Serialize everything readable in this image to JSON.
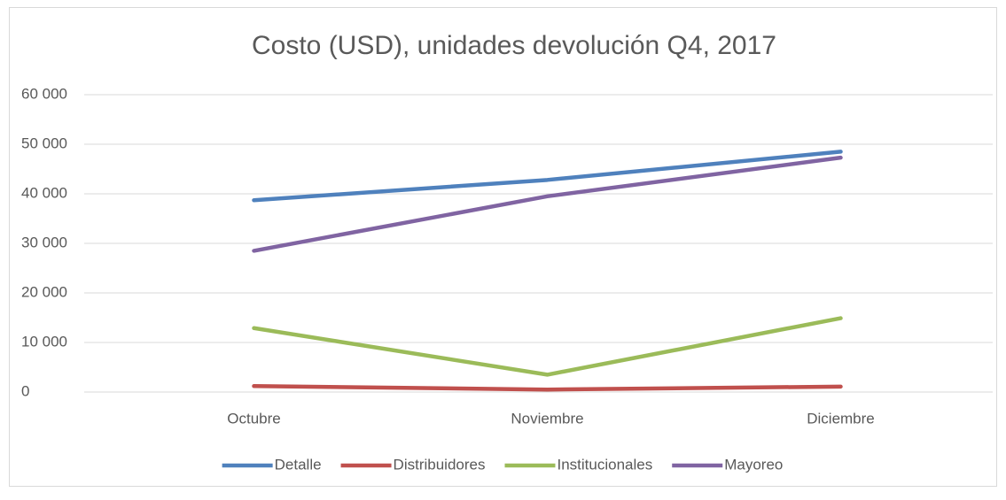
{
  "chart_data": {
    "type": "line",
    "title": "Costo (USD), unidades devolución Q4, 2017",
    "categories": [
      "Octubre",
      "Noviembre",
      "Diciembre"
    ],
    "series": [
      {
        "name": "Detalle",
        "color": "#4f81bd",
        "values": [
          38700,
          42800,
          48500
        ]
      },
      {
        "name": "Distribuidores",
        "color": "#c0504d",
        "values": [
          1200,
          500,
          1100
        ]
      },
      {
        "name": "Institucionales",
        "color": "#9bbb59",
        "values": [
          12900,
          3500,
          14900
        ]
      },
      {
        "name": "Mayoreo",
        "color": "#8064a2",
        "values": [
          28500,
          39500,
          47300
        ]
      }
    ],
    "ylim": [
      0,
      60000
    ],
    "yticks": [
      0,
      {
        "value": 10000,
        "label": "10 000"
      },
      {
        "value": 20000,
        "label": "20 000"
      },
      {
        "value": 30000,
        "label": "30 000"
      },
      {
        "value": 40000,
        "label": "40 000"
      },
      {
        "value": 50000,
        "label": "50 000"
      },
      {
        "value": 60000,
        "label": "60 000"
      }
    ],
    "grid": true,
    "legend": "bottom"
  }
}
